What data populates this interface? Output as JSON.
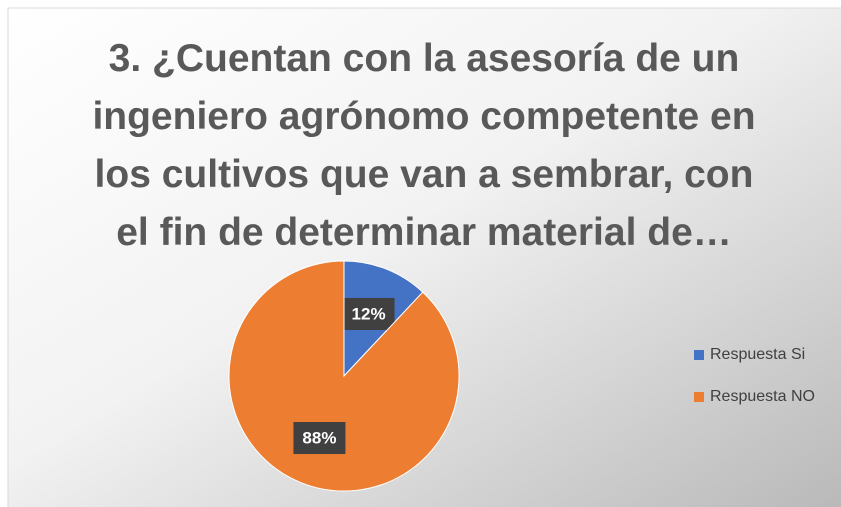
{
  "chart_data": {
    "type": "pie",
    "title": "3. ¿Cuentan con la asesoría de un ingeniero agrónomo competente en los cultivos que van a sembrar, con el fin de determinar material de…",
    "categories": [
      "Respuesta Si",
      "Respuesta NO"
    ],
    "values": [
      12,
      88
    ],
    "value_labels": [
      "12%",
      "88%"
    ],
    "colors": [
      "#4472c4",
      "#ed7d31"
    ],
    "legend": "right"
  }
}
